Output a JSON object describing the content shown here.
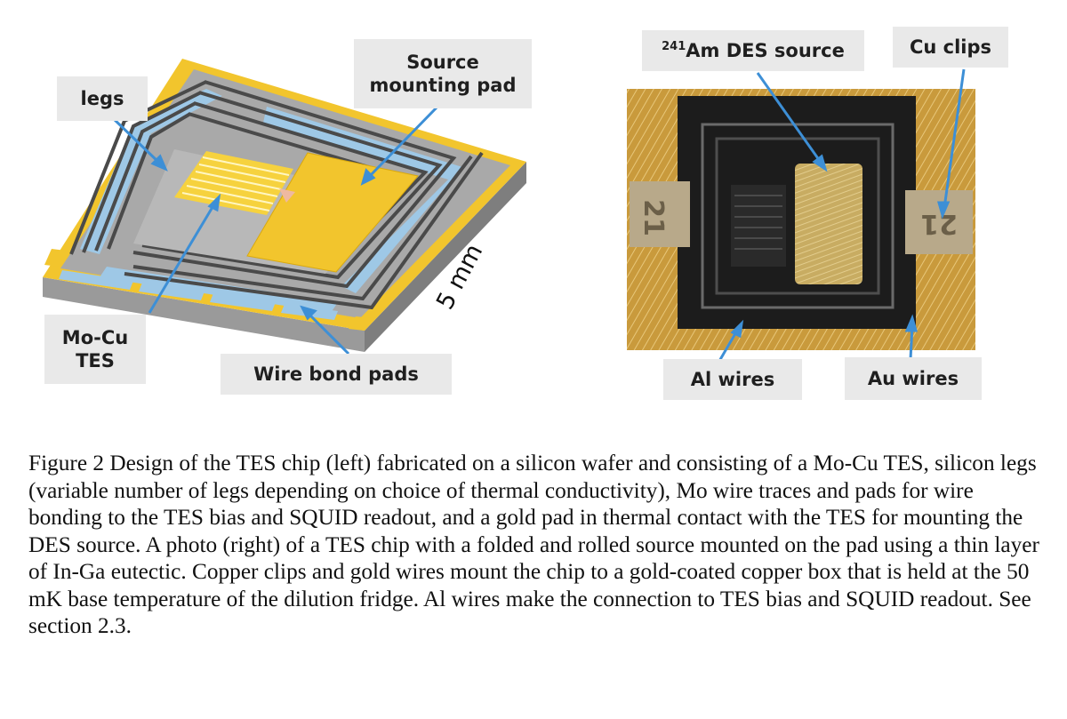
{
  "left_panel": {
    "labels": {
      "legs": "legs",
      "source_pad_line1": "Source",
      "source_pad_line2": "mounting pad",
      "tes_line1": "Mo-Cu",
      "tes_line2": "TES",
      "wire_bond_pads": "Wire bond pads",
      "dimension": "5 mm"
    }
  },
  "right_panel": {
    "labels": {
      "source_sup": "241",
      "source_rest": "Am DES source",
      "cu_clips": "Cu clips",
      "al_wires": "Al wires",
      "au_wires": "Au wires"
    },
    "clip_number": "21"
  },
  "caption": {
    "text": "Figure 2 Design of the TES chip (left) fabricated on a silicon wafer and consisting of a Mo-Cu TES, silicon legs (variable number of legs depending on choice of thermal conductivity), Mo wire traces and pads for wire bonding to the TES bias and SQUID readout, and  a gold pad in thermal contact with the TES for mounting the DES source. A photo (right) of a TES chip with a folded and rolled source mounted on the pad using a thin layer of In-Ga eutectic. Copper clips and gold wires mount the chip to a gold-coated copper box that is held at the 50 mK base temperature of the dilution fridge. Al wires make the connection to TES bias and SQUID readout. See section 2.3."
  },
  "colors": {
    "gold": "#f2c52d",
    "chip_gray": "#a9a9a9",
    "leg_blue": "#9ec8e6",
    "trace_dark": "#4a4a4a",
    "arrow_blue": "#3d8fd6",
    "label_bg": "#e9e9e9"
  }
}
